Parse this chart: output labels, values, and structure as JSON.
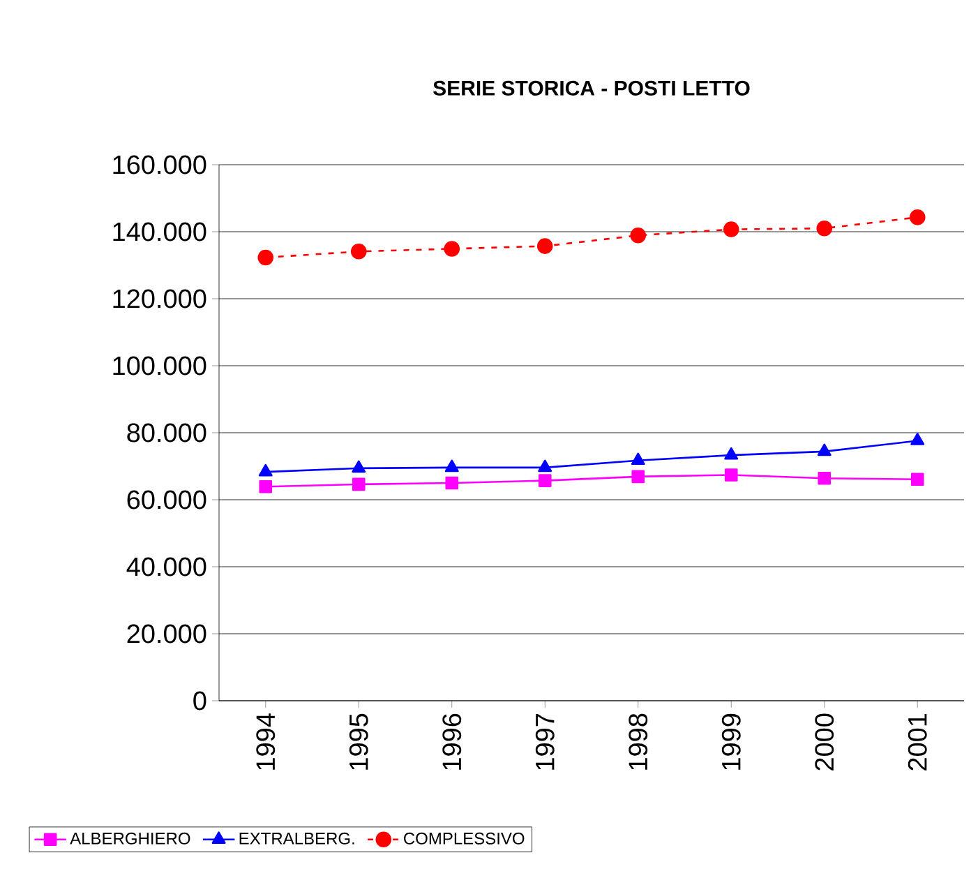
{
  "chart_data": {
    "type": "line",
    "title": "SERIE STORICA - POSTI LETTO",
    "categories": [
      "1994",
      "1995",
      "1996",
      "1997",
      "1998",
      "1999",
      "2000",
      "2001"
    ],
    "series": [
      {
        "name": "ALBERGHIERO",
        "color": "#ff00ff",
        "marker": "square",
        "line_style": "solid",
        "values": [
          63900,
          64600,
          65000,
          65700,
          66900,
          67400,
          66400,
          66100
        ]
      },
      {
        "name": "EXTRALBERG.",
        "color": "#0000ff",
        "marker": "triangle",
        "line_style": "solid",
        "values": [
          68300,
          69400,
          69600,
          69600,
          71700,
          73300,
          74400,
          77600
        ]
      },
      {
        "name": "COMPLESSIVO",
        "color": "#ff0000",
        "marker": "circle",
        "line_style": "dashed",
        "values": [
          132300,
          134100,
          134900,
          135700,
          138900,
          140700,
          141000,
          144300
        ]
      }
    ],
    "ylim": [
      0,
      160000
    ],
    "yticks": [
      {
        "value": 0,
        "label": "0"
      },
      {
        "value": 20000,
        "label": "20.000"
      },
      {
        "value": 40000,
        "label": "40.000"
      },
      {
        "value": 60000,
        "label": "60.000"
      },
      {
        "value": 80000,
        "label": "80.000"
      },
      {
        "value": 100000,
        "label": "100.000"
      },
      {
        "value": 120000,
        "label": "120.000"
      },
      {
        "value": 140000,
        "label": "140.000"
      },
      {
        "value": 160000,
        "label": "160.000"
      }
    ],
    "grid": "y",
    "legend": "bottom"
  }
}
